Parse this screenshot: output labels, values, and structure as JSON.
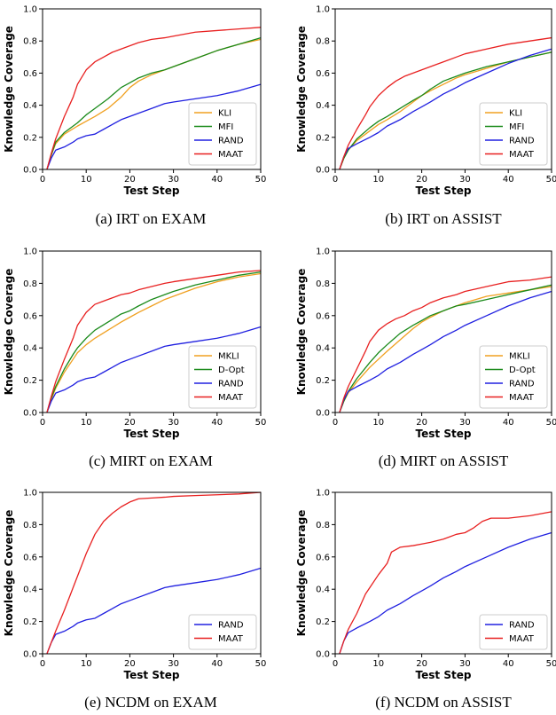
{
  "colors": {
    "KLI": "#f0a020",
    "MFI": "#1a8a1a",
    "MKLI": "#f0a020",
    "D-Opt": "#1a8a1a",
    "RAND": "#2020e0",
    "MAAT": "#e82020"
  },
  "chart_data": [
    {
      "type": "line",
      "caption": "(a) IRT on EXAM",
      "xlabel": "Test Step",
      "ylabel": "Knowledge Coverage",
      "xlim": [
        0,
        50
      ],
      "ylim": [
        0,
        1.0
      ],
      "xticks": [
        0,
        10,
        20,
        30,
        40,
        50
      ],
      "yticks": [
        0.0,
        0.2,
        0.4,
        0.6,
        0.8,
        1.0
      ],
      "xtick_labels": [
        "0",
        "10",
        "20",
        "30",
        "40",
        "50"
      ],
      "ytick_labels": [
        "0.0",
        "0.2",
        "0.4",
        "0.6",
        "0.8",
        "1.0"
      ],
      "legend_position": "lower-right",
      "series": [
        {
          "name": "KLI",
          "x": [
            1,
            2,
            3,
            5,
            8,
            10,
            12,
            15,
            18,
            20,
            22,
            25,
            28,
            30,
            35,
            40,
            45,
            50
          ],
          "y": [
            0,
            0.09,
            0.16,
            0.22,
            0.27,
            0.3,
            0.33,
            0.38,
            0.45,
            0.51,
            0.55,
            0.59,
            0.62,
            0.64,
            0.69,
            0.74,
            0.78,
            0.81
          ]
        },
        {
          "name": "MFI",
          "x": [
            1,
            2,
            3,
            5,
            8,
            10,
            12,
            15,
            18,
            20,
            22,
            25,
            28,
            30,
            35,
            40,
            45,
            50
          ],
          "y": [
            0,
            0.09,
            0.17,
            0.23,
            0.29,
            0.34,
            0.38,
            0.44,
            0.51,
            0.54,
            0.57,
            0.6,
            0.62,
            0.64,
            0.69,
            0.74,
            0.78,
            0.82
          ]
        },
        {
          "name": "RAND",
          "x": [
            1,
            2,
            3,
            5,
            7,
            8,
            10,
            12,
            14,
            16,
            18,
            20,
            22,
            25,
            28,
            30,
            35,
            40,
            45,
            50
          ],
          "y": [
            0,
            0.07,
            0.12,
            0.14,
            0.17,
            0.19,
            0.21,
            0.22,
            0.25,
            0.28,
            0.31,
            0.33,
            0.35,
            0.38,
            0.41,
            0.42,
            0.44,
            0.46,
            0.49,
            0.53
          ]
        },
        {
          "name": "MAAT",
          "x": [
            1,
            2,
            3,
            5,
            7,
            8,
            10,
            12,
            14,
            16,
            18,
            20,
            22,
            25,
            28,
            30,
            35,
            40,
            45,
            50
          ],
          "y": [
            0,
            0.1,
            0.19,
            0.33,
            0.45,
            0.53,
            0.62,
            0.67,
            0.7,
            0.73,
            0.75,
            0.77,
            0.79,
            0.81,
            0.82,
            0.83,
            0.855,
            0.865,
            0.875,
            0.885
          ]
        }
      ]
    },
    {
      "type": "line",
      "caption": "(b) IRT on ASSIST",
      "xlabel": "Test Step",
      "ylabel": "Knowledge Coverage",
      "xlim": [
        0,
        50
      ],
      "ylim": [
        0,
        1.0
      ],
      "xticks": [
        0,
        10,
        20,
        30,
        40,
        50
      ],
      "yticks": [
        0.0,
        0.2,
        0.4,
        0.6,
        0.8,
        1.0
      ],
      "xtick_labels": [
        "0",
        "10",
        "20",
        "30",
        "40",
        "50"
      ],
      "ytick_labels": [
        "0.0",
        "0.2",
        "0.4",
        "0.6",
        "0.8",
        "1.0"
      ],
      "legend_position": "lower-right",
      "series": [
        {
          "name": "KLI",
          "x": [
            1,
            2,
            3,
            5,
            8,
            10,
            12,
            15,
            18,
            20,
            22,
            25,
            28,
            30,
            35,
            40,
            45,
            50
          ],
          "y": [
            0,
            0.07,
            0.12,
            0.18,
            0.24,
            0.28,
            0.31,
            0.36,
            0.42,
            0.46,
            0.49,
            0.53,
            0.57,
            0.59,
            0.63,
            0.67,
            0.7,
            0.73
          ]
        },
        {
          "name": "MFI",
          "x": [
            1,
            2,
            3,
            5,
            8,
            10,
            12,
            15,
            18,
            20,
            22,
            25,
            28,
            30,
            35,
            40,
            45,
            50
          ],
          "y": [
            0,
            0.07,
            0.12,
            0.19,
            0.26,
            0.3,
            0.33,
            0.38,
            0.43,
            0.46,
            0.5,
            0.55,
            0.58,
            0.6,
            0.64,
            0.67,
            0.7,
            0.73
          ]
        },
        {
          "name": "RAND",
          "x": [
            1,
            2,
            3,
            5,
            8,
            10,
            12,
            15,
            18,
            20,
            22,
            25,
            28,
            30,
            35,
            40,
            45,
            50
          ],
          "y": [
            0,
            0.08,
            0.13,
            0.16,
            0.2,
            0.23,
            0.27,
            0.31,
            0.36,
            0.39,
            0.42,
            0.47,
            0.51,
            0.54,
            0.6,
            0.66,
            0.71,
            0.75
          ]
        },
        {
          "name": "MAAT",
          "x": [
            1,
            2,
            3,
            5,
            7,
            8,
            10,
            12,
            14,
            16,
            18,
            20,
            22,
            25,
            28,
            30,
            35,
            40,
            45,
            50
          ],
          "y": [
            0,
            0.08,
            0.15,
            0.25,
            0.34,
            0.39,
            0.46,
            0.51,
            0.55,
            0.58,
            0.6,
            0.62,
            0.64,
            0.67,
            0.7,
            0.72,
            0.75,
            0.78,
            0.8,
            0.82
          ]
        }
      ]
    },
    {
      "type": "line",
      "caption": "(c) MIRT on EXAM",
      "xlabel": "Test Step",
      "ylabel": "Knowledge Coverage",
      "xlim": [
        0,
        50
      ],
      "ylim": [
        0,
        1.0
      ],
      "xticks": [
        0,
        10,
        20,
        30,
        40,
        50
      ],
      "yticks": [
        0.0,
        0.2,
        0.4,
        0.6,
        0.8,
        1.0
      ],
      "xtick_labels": [
        "0",
        "10",
        "20",
        "30",
        "40",
        "50"
      ],
      "ytick_labels": [
        "0.0",
        "0.2",
        "0.4",
        "0.6",
        "0.8",
        "1.0"
      ],
      "legend_position": "lower-right",
      "series": [
        {
          "name": "MKLI",
          "x": [
            1,
            2,
            3,
            5,
            7,
            8,
            10,
            12,
            15,
            18,
            20,
            22,
            25,
            28,
            30,
            35,
            40,
            45,
            50
          ],
          "y": [
            0,
            0.08,
            0.15,
            0.25,
            0.33,
            0.37,
            0.42,
            0.46,
            0.51,
            0.56,
            0.59,
            0.62,
            0.66,
            0.7,
            0.72,
            0.77,
            0.81,
            0.84,
            0.86
          ]
        },
        {
          "name": "D-Opt",
          "x": [
            1,
            2,
            3,
            5,
            7,
            8,
            10,
            12,
            15,
            18,
            20,
            22,
            25,
            28,
            30,
            35,
            40,
            45,
            50
          ],
          "y": [
            0,
            0.09,
            0.16,
            0.27,
            0.36,
            0.4,
            0.46,
            0.51,
            0.56,
            0.61,
            0.63,
            0.66,
            0.7,
            0.73,
            0.75,
            0.79,
            0.82,
            0.85,
            0.87
          ]
        },
        {
          "name": "RAND",
          "x": [
            1,
            2,
            3,
            5,
            7,
            8,
            10,
            12,
            14,
            16,
            18,
            20,
            22,
            25,
            28,
            30,
            35,
            40,
            45,
            50
          ],
          "y": [
            0,
            0.07,
            0.12,
            0.14,
            0.17,
            0.19,
            0.21,
            0.22,
            0.25,
            0.28,
            0.31,
            0.33,
            0.35,
            0.38,
            0.41,
            0.42,
            0.44,
            0.46,
            0.49,
            0.53
          ]
        },
        {
          "name": "MAAT",
          "x": [
            1,
            2,
            3,
            5,
            7,
            8,
            10,
            12,
            14,
            16,
            18,
            20,
            22,
            25,
            28,
            30,
            35,
            40,
            45,
            50
          ],
          "y": [
            0,
            0.1,
            0.19,
            0.33,
            0.46,
            0.54,
            0.62,
            0.67,
            0.69,
            0.71,
            0.73,
            0.74,
            0.76,
            0.78,
            0.8,
            0.81,
            0.83,
            0.85,
            0.87,
            0.88
          ]
        }
      ]
    },
    {
      "type": "line",
      "caption": "(d) MIRT on ASSIST",
      "xlabel": "Test Step",
      "ylabel": "Knowledge Coverage",
      "xlim": [
        0,
        50
      ],
      "ylim": [
        0,
        1.0
      ],
      "xticks": [
        0,
        10,
        20,
        30,
        40,
        50
      ],
      "yticks": [
        0.0,
        0.2,
        0.4,
        0.6,
        0.8,
        1.0
      ],
      "xtick_labels": [
        "0",
        "10",
        "20",
        "30",
        "40",
        "50"
      ],
      "ytick_labels": [
        "0.0",
        "0.2",
        "0.4",
        "0.6",
        "0.8",
        "1.0"
      ],
      "legend_position": "lower-right",
      "series": [
        {
          "name": "MKLI",
          "x": [
            1,
            2,
            3,
            5,
            8,
            10,
            12,
            15,
            18,
            20,
            22,
            25,
            28,
            30,
            35,
            40,
            45,
            50
          ],
          "y": [
            0,
            0.07,
            0.12,
            0.19,
            0.28,
            0.33,
            0.38,
            0.45,
            0.52,
            0.56,
            0.59,
            0.63,
            0.66,
            0.68,
            0.72,
            0.74,
            0.76,
            0.78
          ]
        },
        {
          "name": "D-Opt",
          "x": [
            1,
            2,
            3,
            5,
            8,
            10,
            12,
            15,
            18,
            20,
            22,
            25,
            28,
            30,
            35,
            40,
            45,
            50
          ],
          "y": [
            0,
            0.07,
            0.13,
            0.21,
            0.31,
            0.37,
            0.42,
            0.49,
            0.54,
            0.57,
            0.6,
            0.63,
            0.66,
            0.67,
            0.7,
            0.73,
            0.76,
            0.79
          ]
        },
        {
          "name": "RAND",
          "x": [
            1,
            2,
            3,
            5,
            8,
            10,
            12,
            15,
            18,
            20,
            22,
            25,
            28,
            30,
            35,
            40,
            45,
            50
          ],
          "y": [
            0,
            0.08,
            0.13,
            0.16,
            0.2,
            0.23,
            0.27,
            0.31,
            0.36,
            0.39,
            0.42,
            0.47,
            0.51,
            0.54,
            0.6,
            0.66,
            0.71,
            0.75
          ]
        },
        {
          "name": "MAAT",
          "x": [
            1,
            2,
            3,
            5,
            7,
            8,
            10,
            12,
            14,
            16,
            18,
            20,
            22,
            25,
            28,
            30,
            35,
            40,
            45,
            50
          ],
          "y": [
            0,
            0.09,
            0.16,
            0.27,
            0.38,
            0.44,
            0.51,
            0.55,
            0.58,
            0.6,
            0.63,
            0.65,
            0.68,
            0.71,
            0.73,
            0.75,
            0.78,
            0.81,
            0.82,
            0.84
          ]
        }
      ]
    },
    {
      "type": "line",
      "caption": "(e) NCDM on EXAM",
      "xlabel": "Test Step",
      "ylabel": "Knowledge Coverage",
      "xlim": [
        0,
        50
      ],
      "ylim": [
        0,
        1.0
      ],
      "xticks": [
        0,
        10,
        20,
        30,
        40,
        50
      ],
      "yticks": [
        0.0,
        0.2,
        0.4,
        0.6,
        0.8,
        1.0
      ],
      "xtick_labels": [
        "0",
        "10",
        "20",
        "30",
        "40",
        "50"
      ],
      "ytick_labels": [
        "0.0",
        "0.2",
        "0.4",
        "0.6",
        "0.8",
        "1.0"
      ],
      "legend_position": "lower-right",
      "series": [
        {
          "name": "RAND",
          "x": [
            1,
            2,
            3,
            5,
            7,
            8,
            10,
            12,
            14,
            16,
            18,
            20,
            22,
            25,
            28,
            30,
            35,
            40,
            45,
            50
          ],
          "y": [
            0,
            0.07,
            0.12,
            0.14,
            0.17,
            0.19,
            0.21,
            0.22,
            0.25,
            0.28,
            0.31,
            0.33,
            0.35,
            0.38,
            0.41,
            0.42,
            0.44,
            0.46,
            0.49,
            0.53
          ]
        },
        {
          "name": "MAAT",
          "x": [
            1,
            2,
            3,
            5,
            7,
            8,
            10,
            12,
            14,
            16,
            18,
            20,
            22,
            25,
            28,
            30,
            35,
            40,
            45,
            50
          ],
          "y": [
            0,
            0.07,
            0.14,
            0.27,
            0.41,
            0.48,
            0.62,
            0.74,
            0.82,
            0.87,
            0.91,
            0.94,
            0.96,
            0.965,
            0.97,
            0.975,
            0.98,
            0.985,
            0.99,
            1.0
          ]
        }
      ]
    },
    {
      "type": "line",
      "caption": "(f) NCDM on ASSIST",
      "xlabel": "Test Step",
      "ylabel": "Knowledge Coverage",
      "xlim": [
        0,
        50
      ],
      "ylim": [
        0,
        1.0
      ],
      "xticks": [
        0,
        10,
        20,
        30,
        40,
        50
      ],
      "yticks": [
        0.0,
        0.2,
        0.4,
        0.6,
        0.8,
        1.0
      ],
      "xtick_labels": [
        "0",
        "10",
        "20",
        "30",
        "40",
        "50"
      ],
      "ytick_labels": [
        "0.0",
        "0.2",
        "0.4",
        "0.6",
        "0.8",
        "1.0"
      ],
      "legend_position": "lower-right",
      "series": [
        {
          "name": "RAND",
          "x": [
            1,
            2,
            3,
            5,
            8,
            10,
            12,
            15,
            18,
            20,
            22,
            25,
            28,
            30,
            35,
            40,
            45,
            50
          ],
          "y": [
            0,
            0.08,
            0.13,
            0.16,
            0.2,
            0.23,
            0.27,
            0.31,
            0.36,
            0.39,
            0.42,
            0.47,
            0.51,
            0.54,
            0.6,
            0.66,
            0.71,
            0.75
          ]
        },
        {
          "name": "MAAT",
          "x": [
            1,
            2,
            3,
            5,
            7,
            8,
            10,
            12,
            13,
            15,
            18,
            20,
            22,
            25,
            28,
            30,
            32,
            34,
            36,
            40,
            45,
            50
          ],
          "y": [
            0,
            0.08,
            0.15,
            0.25,
            0.37,
            0.41,
            0.49,
            0.56,
            0.63,
            0.66,
            0.67,
            0.68,
            0.69,
            0.71,
            0.74,
            0.75,
            0.78,
            0.82,
            0.84,
            0.84,
            0.855,
            0.88
          ]
        }
      ]
    }
  ]
}
